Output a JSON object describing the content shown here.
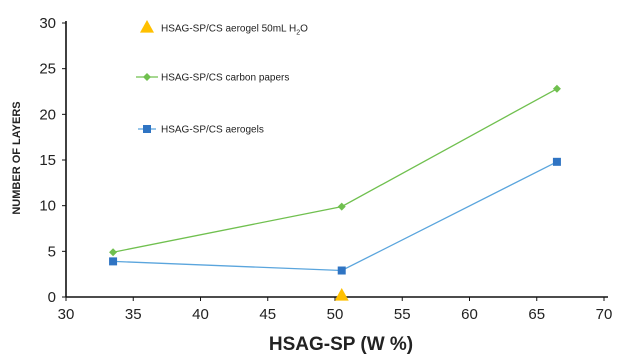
{
  "chart_data": {
    "type": "line",
    "xlabel": "HSAG-SP (W %)",
    "ylabel": "NUMBER OF LAYERS",
    "xlim": [
      30,
      70
    ],
    "ylim": [
      0,
      30
    ],
    "xticks": [
      30,
      35,
      40,
      45,
      50,
      55,
      60,
      65,
      70
    ],
    "yticks": [
      0,
      5,
      10,
      15,
      20,
      25,
      30
    ],
    "grid": false,
    "legend_position": "top-left",
    "series": [
      {
        "name": "HSAG-SP/CS aerogel 50mL H2O",
        "legend_main": "HSAG-SP/CS aerogel 50mL H",
        "legend_sub": "2",
        "legend_tail": "O",
        "marker": "triangle",
        "color": "#ffc000",
        "line": false,
        "x": [
          50.5
        ],
        "y": [
          0
        ]
      },
      {
        "name": "HSAG-SP/CS carbon papers",
        "marker": "diamond",
        "color": "#70c04f",
        "line": true,
        "x": [
          33.5,
          50.5,
          66.5
        ],
        "y": [
          4.9,
          9.9,
          22.8
        ]
      },
      {
        "name": "HSAG-SP/CS aerogels",
        "marker": "square",
        "color": "#2f74c3",
        "line_color": "#5aa5dd",
        "line": true,
        "x": [
          33.5,
          50.5,
          66.5
        ],
        "y": [
          3.9,
          2.9,
          14.8
        ]
      }
    ]
  }
}
